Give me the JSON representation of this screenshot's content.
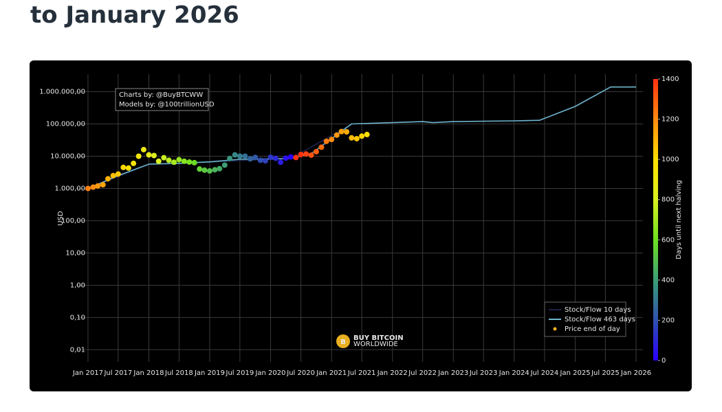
{
  "heading": "to January 2026",
  "chart_data": {
    "type": "line",
    "annotation": [
      "Charts by: @BuyBTCWW",
      "Models by: @100trillionUSD"
    ],
    "logo": {
      "mark": "B",
      "line1": "BUY BITCOIN",
      "line2": "WORLDWIDE"
    },
    "ylabel": "USD",
    "log_y": true,
    "grid": true,
    "legend_position": "bottom-right",
    "xlim": [
      "2016-10-19",
      "2026-02-11"
    ],
    "xticks": [
      {
        "value": "2017-01-01",
        "label": "Jan 2017"
      },
      {
        "value": "2017-07-01",
        "label": "Jul 2017"
      },
      {
        "value": "2018-01-01",
        "label": "Jan 2018"
      },
      {
        "value": "2018-07-01",
        "label": "Jul 2018"
      },
      {
        "value": "2019-01-01",
        "label": "Jan 2019"
      },
      {
        "value": "2019-07-01",
        "label": "Jul 2019"
      },
      {
        "value": "2020-01-01",
        "label": "Jan 2020"
      },
      {
        "value": "2020-07-01",
        "label": "Jul 2020"
      },
      {
        "value": "2021-01-01",
        "label": "Jan 2021"
      },
      {
        "value": "2021-07-01",
        "label": "Jul 2021"
      },
      {
        "value": "2022-01-01",
        "label": "Jan 2022"
      },
      {
        "value": "2022-07-01",
        "label": "Jul 2022"
      },
      {
        "value": "2023-01-01",
        "label": "Jan 2023"
      },
      {
        "value": "2023-07-01",
        "label": "Jul 2023"
      },
      {
        "value": "2024-01-01",
        "label": "Jan 2024"
      },
      {
        "value": "2024-07-01",
        "label": "Jul 2024"
      },
      {
        "value": "2025-01-01",
        "label": "Jan 2025"
      },
      {
        "value": "2025-07-01",
        "label": "Jul 2025"
      },
      {
        "value": "2026-01-01",
        "label": "Jan 2026"
      }
    ],
    "ylim": [
      0.0042,
      3500000
    ],
    "yticks": [
      {
        "value": 0.01,
        "label": "0,01"
      },
      {
        "value": 0.1,
        "label": "0,10"
      },
      {
        "value": 1,
        "label": "1,00"
      },
      {
        "value": 10,
        "label": "10,00"
      },
      {
        "value": 100,
        "label": "100,00"
      },
      {
        "value": 1000,
        "label": "1.000,00"
      },
      {
        "value": 10000,
        "label": "10.000,00"
      },
      {
        "value": 100000,
        "label": "100.000,00"
      },
      {
        "value": 1000000,
        "label": "1.000.000,00"
      }
    ],
    "colorbar": {
      "label": "Days until next halving",
      "lim": [
        0,
        1400
      ],
      "ticks": [
        0,
        200,
        400,
        600,
        800,
        1000,
        1200,
        1400
      ],
      "colorscale": [
        [
          0,
          "#2a00ff"
        ],
        [
          0.14,
          "#2f4fb0"
        ],
        [
          0.28,
          "#3a9a7a"
        ],
        [
          0.43,
          "#6fe020"
        ],
        [
          0.57,
          "#d8f020"
        ],
        [
          0.71,
          "#ffe000"
        ],
        [
          0.86,
          "#ff8a10"
        ],
        [
          1,
          "#ff3010"
        ]
      ]
    },
    "series": [
      {
        "name": "Stock/Flow 10 days",
        "mode": "lines",
        "color": "#1c2248",
        "x": [
          "2017-01-01",
          "2018-01-01",
          "2019-01-01",
          "2020-01-01",
          "2020-05-01",
          "2021-05-01"
        ],
        "values": [
          1000,
          5600,
          6600,
          8100,
          8400,
          98000
        ]
      },
      {
        "name": "Stock/Flow 463 days",
        "mode": "lines",
        "color": "#6fb6d0",
        "x": [
          "2017-01-01",
          "2017-07-01",
          "2018-01-01",
          "2018-07-01",
          "2019-01-01",
          "2019-07-01",
          "2020-01-01",
          "2020-05-01",
          "2020-09-01",
          "2021-01-01",
          "2021-05-01",
          "2022-01-01",
          "2022-07-01",
          "2022-09-01",
          "2023-01-01",
          "2024-01-01",
          "2024-06-01",
          "2025-01-01",
          "2025-08-01",
          "2026-01-01"
        ],
        "values": [
          1000,
          2500,
          5700,
          6000,
          6700,
          8000,
          8200,
          8500,
          12000,
          35000,
          100000,
          110000,
          118000,
          110000,
          118000,
          125000,
          130000,
          350000,
          1400000,
          1400000
        ]
      },
      {
        "name": "Price end of day",
        "mode": "markers",
        "color": "#f0b020",
        "x": [
          "2017-01-01",
          "2017-02-01",
          "2017-03-01",
          "2017-04-01",
          "2017-05-01",
          "2017-06-01",
          "2017-07-01",
          "2017-08-01",
          "2017-09-01",
          "2017-10-01",
          "2017-11-01",
          "2017-12-01",
          "2018-01-01",
          "2018-02-01",
          "2018-03-01",
          "2018-04-01",
          "2018-05-01",
          "2018-06-01",
          "2018-07-01",
          "2018-08-01",
          "2018-09-01",
          "2018-10-01",
          "2018-11-01",
          "2018-12-01",
          "2019-01-01",
          "2019-02-01",
          "2019-03-01",
          "2019-04-01",
          "2019-05-01",
          "2019-06-01",
          "2019-07-01",
          "2019-08-01",
          "2019-09-01",
          "2019-10-01",
          "2019-11-01",
          "2019-12-01",
          "2020-01-01",
          "2020-02-01",
          "2020-03-01",
          "2020-04-01",
          "2020-05-01",
          "2020-06-01",
          "2020-07-01",
          "2020-08-01",
          "2020-09-01",
          "2020-10-01",
          "2020-11-01",
          "2020-12-01",
          "2021-01-01",
          "2021-02-01",
          "2021-03-01",
          "2021-04-01",
          "2021-05-01",
          "2021-06-01",
          "2021-07-01",
          "2021-08-01"
        ],
        "values": [
          1000,
          1100,
          1200,
          1300,
          2000,
          2500,
          2800,
          4500,
          4300,
          6000,
          10000,
          16000,
          11000,
          10500,
          7000,
          9000,
          7500,
          6500,
          7800,
          7000,
          6600,
          6300,
          4000,
          3700,
          3500,
          3800,
          4100,
          5300,
          8500,
          11000,
          10000,
          10000,
          8300,
          9200,
          7500,
          7200,
          9300,
          8600,
          6500,
          8700,
          9500,
          9100,
          11300,
          11700,
          10800,
          13800,
          19000,
          29000,
          33000,
          45000,
          58000,
          57000,
          37000,
          35000,
          42000,
          47000
        ],
        "days": [
          1226,
          1195,
          1167,
          1136,
          1106,
          1075,
          1045,
          1014,
          983,
          953,
          922,
          892,
          861,
          830,
          802,
          771,
          741,
          710,
          680,
          649,
          618,
          588,
          557,
          527,
          496,
          465,
          437,
          406,
          376,
          345,
          315,
          284,
          253,
          223,
          192,
          162,
          131,
          100,
          71,
          40,
          10,
          1419,
          1389,
          1358,
          1327,
          1297,
          1266,
          1236,
          1205,
          1174,
          1146,
          1115,
          1085,
          1054,
          1024,
          993
        ]
      }
    ]
  }
}
